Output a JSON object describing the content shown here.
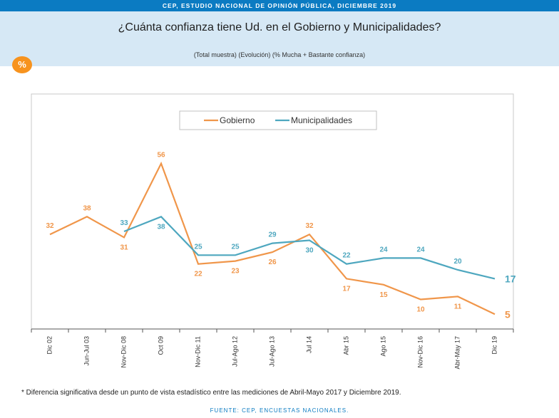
{
  "header": {
    "top_banner": "CEP, ESTUDIO NACIONAL DE OPINIÓN PÚBLICA, DICIEMBRE 2019",
    "badge": "%"
  },
  "chart_data": {
    "type": "line",
    "title": "¿Cuánta confianza tiene Ud. en el Gobierno y Municipalidades?",
    "subtitle": "(Total muestra) (Evolución) (% Mucha + Bastante confianza)",
    "categories": [
      "Dic 02",
      "Jun-Jul 03",
      "Nov-Dic 08",
      "Oct 09",
      "Nov-Dic 11",
      "Jul-Ago 12",
      "Jul-Ago 13",
      "Jul 14",
      "Abr 15",
      "Ago 15",
      "Nov-Dic 16",
      "Abr-May 17",
      "Dic 19"
    ],
    "series": [
      {
        "name": "Gobierno",
        "color": "#f0964a",
        "values": [
          32,
          38,
          31,
          56,
          22,
          23,
          26,
          32,
          17,
          15,
          10,
          11,
          5
        ],
        "last_label": "5"
      },
      {
        "name": "Municipalidades",
        "color": "#4ea7bf",
        "values": [
          null,
          null,
          33,
          38,
          25,
          25,
          29,
          30,
          22,
          24,
          24,
          20,
          17
        ],
        "last_label": "17"
      }
    ],
    "ylim": [
      0,
      70
    ],
    "legend": "top-center",
    "grid": false
  },
  "footnote": "* Diferencia significativa desde un punto de vista estadístico entre las mediciones de Abril-Mayo 2017 y Diciembre 2019.",
  "source": "FUENTE: CEP, ENCUESTAS NACIONALES."
}
